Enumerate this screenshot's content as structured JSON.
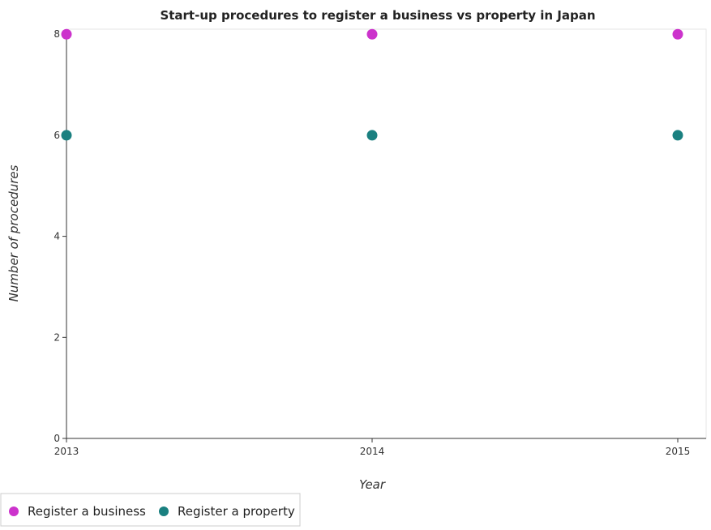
{
  "chart_data": {
    "type": "scatter",
    "title": "Start-up procedures to register a business vs property in Japan",
    "xlabel": "Year",
    "ylabel": "Number of procedures",
    "categories": [
      "2013",
      "2014",
      "2015"
    ],
    "y_ticks": [
      "0",
      "2",
      "4",
      "6",
      "8"
    ],
    "ylim": [
      0,
      8.1
    ],
    "grid": false,
    "legend_position": "bottom-left",
    "series": [
      {
        "name": "Register a business",
        "color": "#cc33cc",
        "values": [
          8,
          8,
          8
        ]
      },
      {
        "name": "Register a property",
        "color": "#1a8080",
        "values": [
          6,
          6,
          6
        ]
      }
    ]
  }
}
